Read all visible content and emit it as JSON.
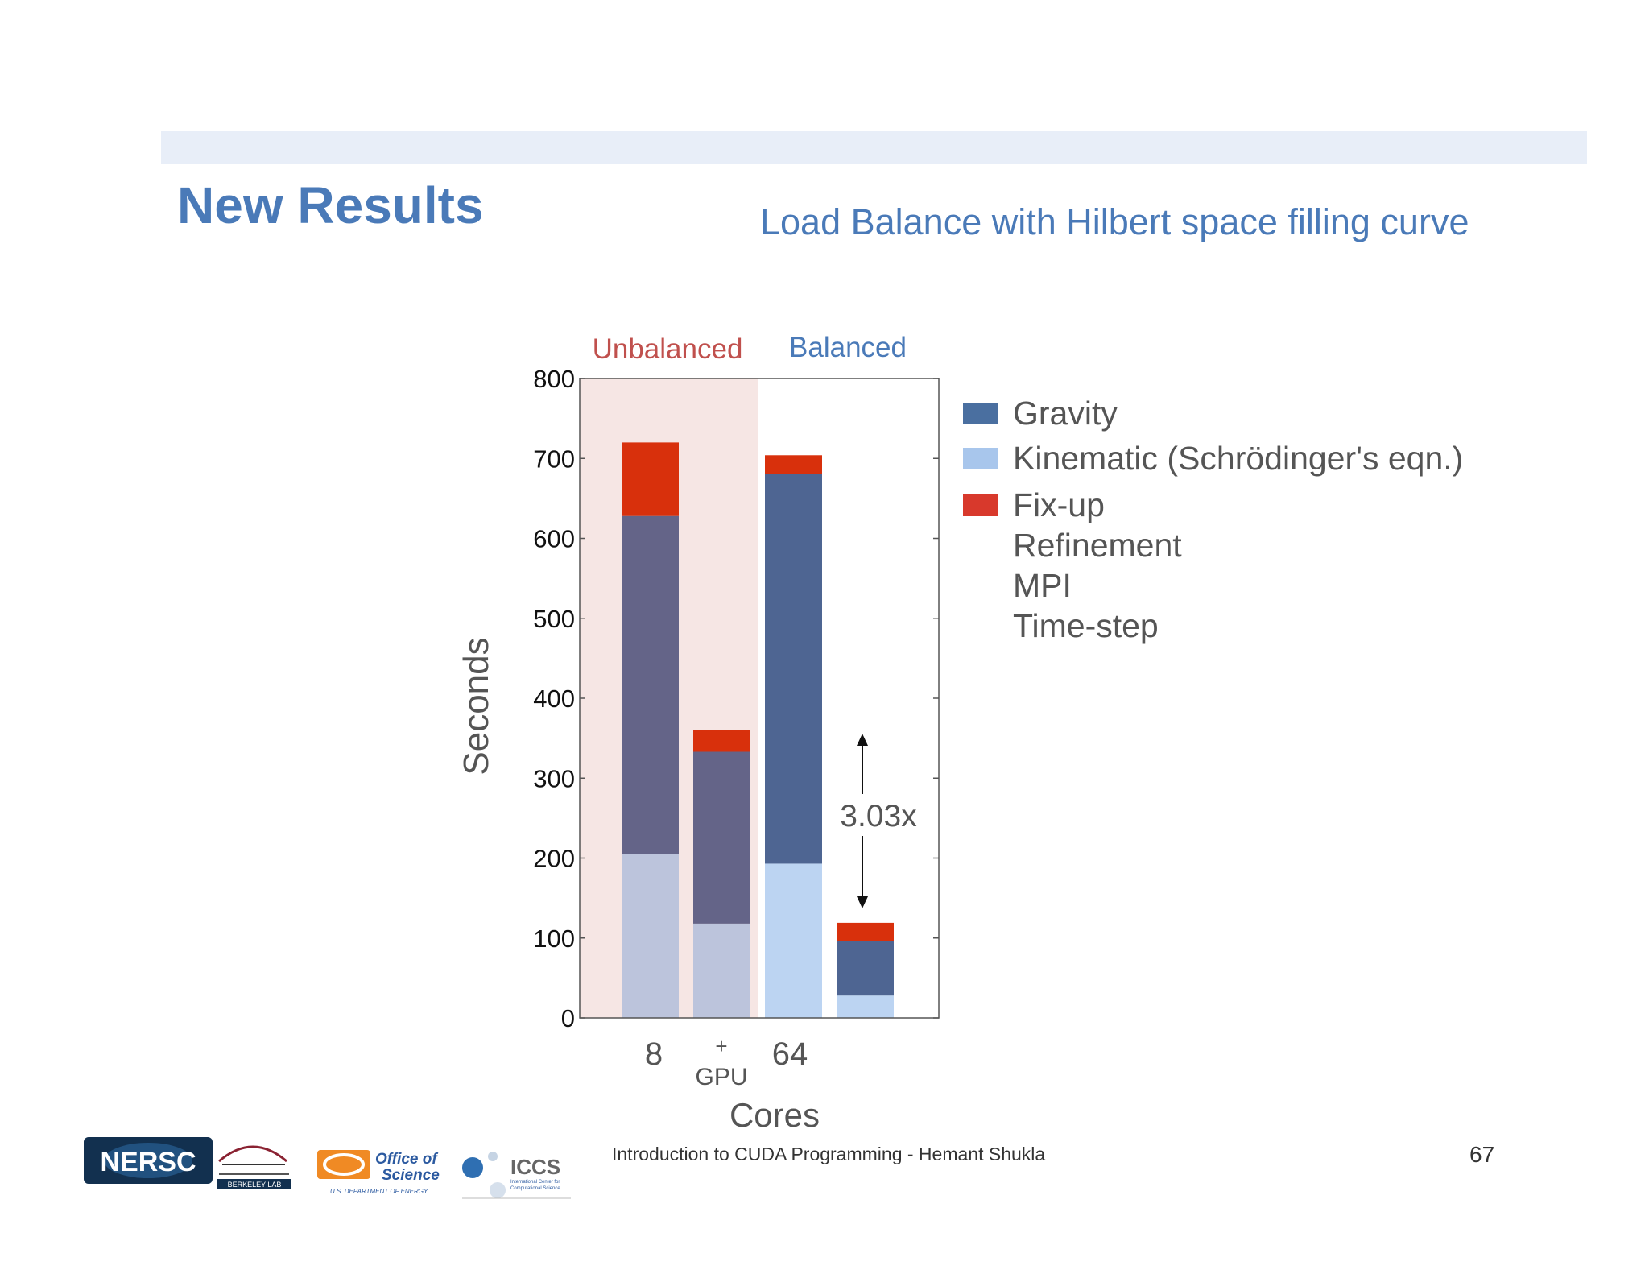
{
  "slide": {
    "title": "New Results",
    "subtitle": "Load Balance with Hilbert space filling curve",
    "footer": "Introduction to CUDA Programming - Hemant Shukla",
    "page_number": "67"
  },
  "logos": {
    "nersc": "NERSC",
    "berkeley_lab": "BERKELEY LAB",
    "office_of_science": [
      "Office of",
      "Science"
    ],
    "doe": "U.S. DEPARTMENT OF ENERGY",
    "iccs": "ICCS",
    "iccs_sub": [
      "International Center for",
      "Computational Science"
    ]
  },
  "chart_data": {
    "type": "bar",
    "stacked": true,
    "ylabel": "Seconds",
    "xlabel": "Cores",
    "ylim": [
      0,
      800
    ],
    "yticks": [
      0,
      100,
      200,
      300,
      400,
      500,
      600,
      700,
      800
    ],
    "group_labels": {
      "unbalanced": "Unbalanced",
      "balanced": "Balanced"
    },
    "category_labels": {
      "core8": "8",
      "gpu_plus": "+",
      "gpu": "GPU",
      "core64": "64"
    },
    "bars": [
      {
        "group": "unbalanced",
        "Kinematic": 205,
        "Gravity": 423,
        "Fix-up": 92
      },
      {
        "group": "unbalanced",
        "Kinematic": 118,
        "Gravity": 215,
        "Fix-up": 27
      },
      {
        "group": "balanced",
        "Kinematic": 193,
        "Gravity": 488,
        "Fix-up": 23
      },
      {
        "group": "balanced",
        "Kinematic": 28,
        "Gravity": 68,
        "Fix-up": 23
      }
    ],
    "annotation": "3.03x",
    "legend": [
      {
        "label": "Gravity",
        "color": "#4a6fa0"
      },
      {
        "label": "Kinematic (Schrödinger's eqn.)",
        "color": "#a8c6ec"
      },
      {
        "label": "Fix-up",
        "color": "#d8392c"
      },
      {
        "label": "Refinement",
        "color": null
      },
      {
        "label": "MPI",
        "color": null
      },
      {
        "label": "Time-step",
        "color": null
      }
    ],
    "colors": {
      "unbalanced_bg": "#f6e6e4",
      "unbalanced_label": "#c0504d",
      "balanced_label": "#4a7ab8",
      "gravity_unbalanced": "#646488",
      "kinematic_unbalanced": "#bcc4dc",
      "gravity_balanced": "#4e6592",
      "kinematic_balanced": "#bcd4f2",
      "fixup": "#d8300c"
    }
  }
}
